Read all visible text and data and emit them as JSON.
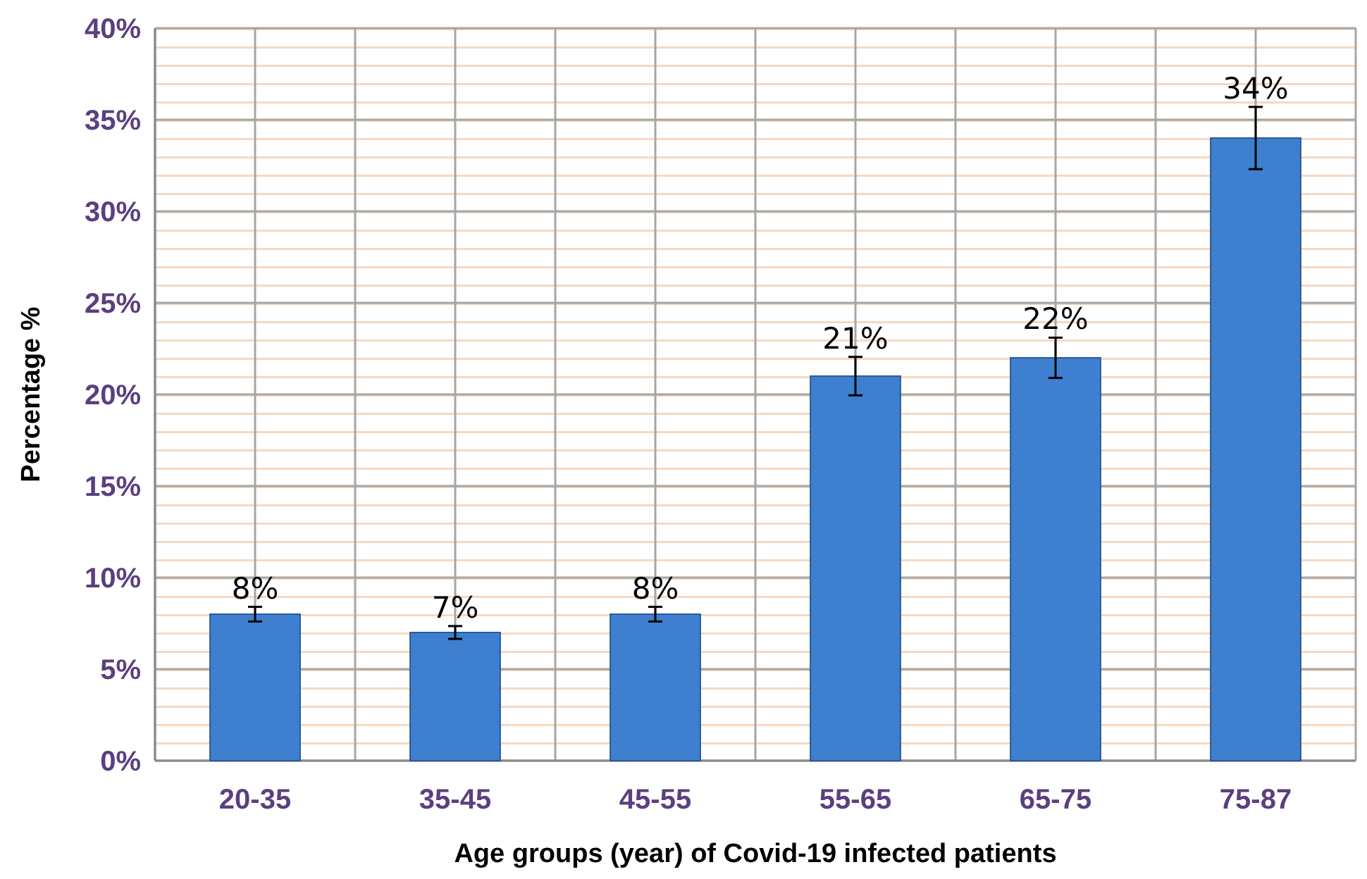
{
  "chart_data": {
    "type": "bar",
    "xlabel": "Age groups (year) of Covid-19 infected patients",
    "ylabel": "Percentage %",
    "categories": [
      "20-35",
      "35-45",
      "45-55",
      "55-65",
      "65-75",
      "75-87"
    ],
    "values": [
      8,
      7,
      8,
      21,
      22,
      34
    ],
    "errors": [
      0.4,
      0.35,
      0.4,
      1.05,
      1.1,
      1.7
    ],
    "value_labels": [
      "8%",
      "7%",
      "8%",
      "21%",
      "22%",
      "34%"
    ],
    "color": "#3f7fcf",
    "ylim": [
      0,
      40
    ],
    "yticks": [
      {
        "value": 0,
        "label": "0%"
      },
      {
        "value": 5,
        "label": "5%"
      },
      {
        "value": 10,
        "label": "10%"
      },
      {
        "value": 15,
        "label": "15%"
      },
      {
        "value": 20,
        "label": "20%"
      },
      {
        "value": 25,
        "label": "25%"
      },
      {
        "value": 30,
        "label": "30%"
      },
      {
        "value": 35,
        "label": "35%"
      },
      {
        "value": 40,
        "label": "40%"
      }
    ],
    "grid": true
  }
}
